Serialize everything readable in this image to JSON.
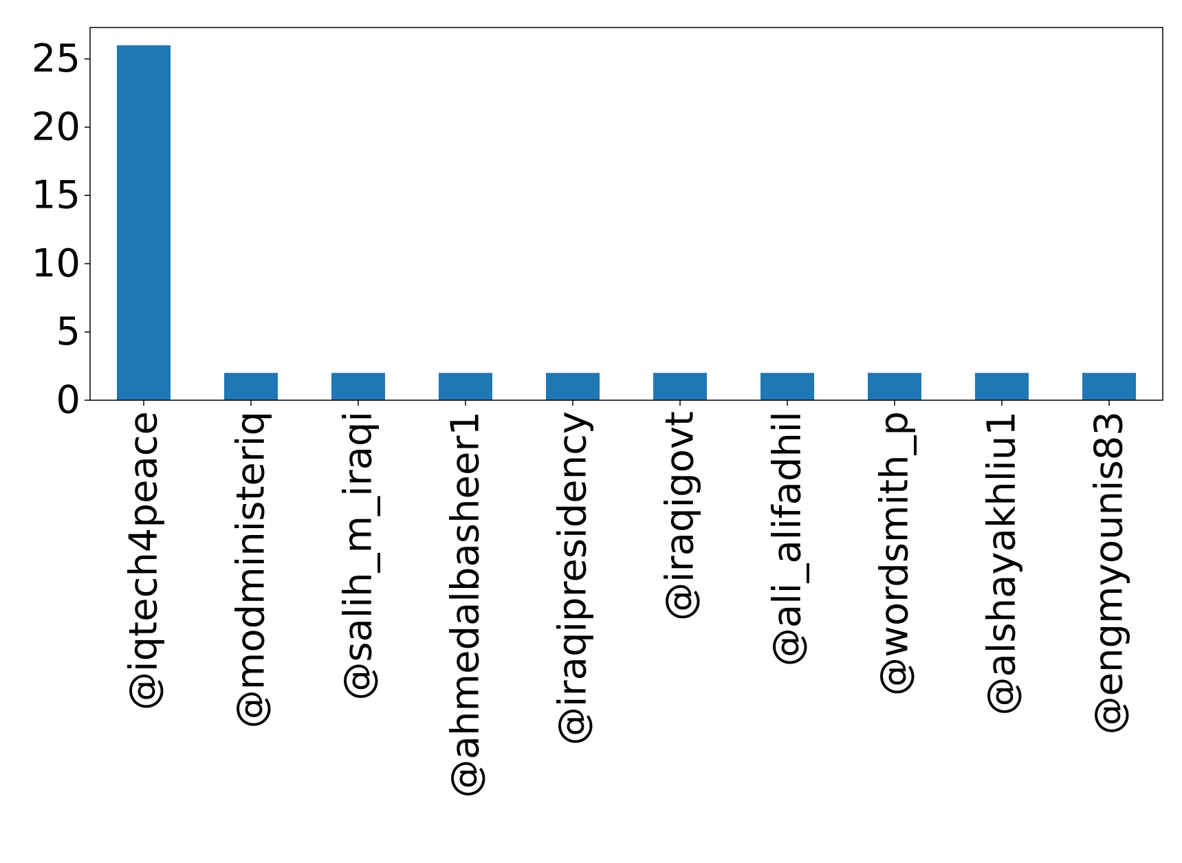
{
  "chart_data": {
    "type": "bar",
    "title": "",
    "xlabel": "",
    "ylabel": "",
    "categories": [
      "@iqtech4peace",
      "@modministeriq",
      "@salih_m_iraqi",
      "@ahmedalbasheer1",
      "@iraqipresidency",
      "@iraqigovt",
      "@ali_alifadhil",
      "@wordsmith_p",
      "@alshayakhliu1",
      "@engmyounis83"
    ],
    "values": [
      26,
      2,
      2,
      2,
      2,
      2,
      2,
      2,
      2,
      2
    ],
    "ylim": [
      0,
      27.3
    ],
    "yticks": [
      0,
      5,
      10,
      15,
      20,
      25
    ],
    "bar_color": "#1f77b4",
    "grid": false,
    "legend": "none"
  }
}
